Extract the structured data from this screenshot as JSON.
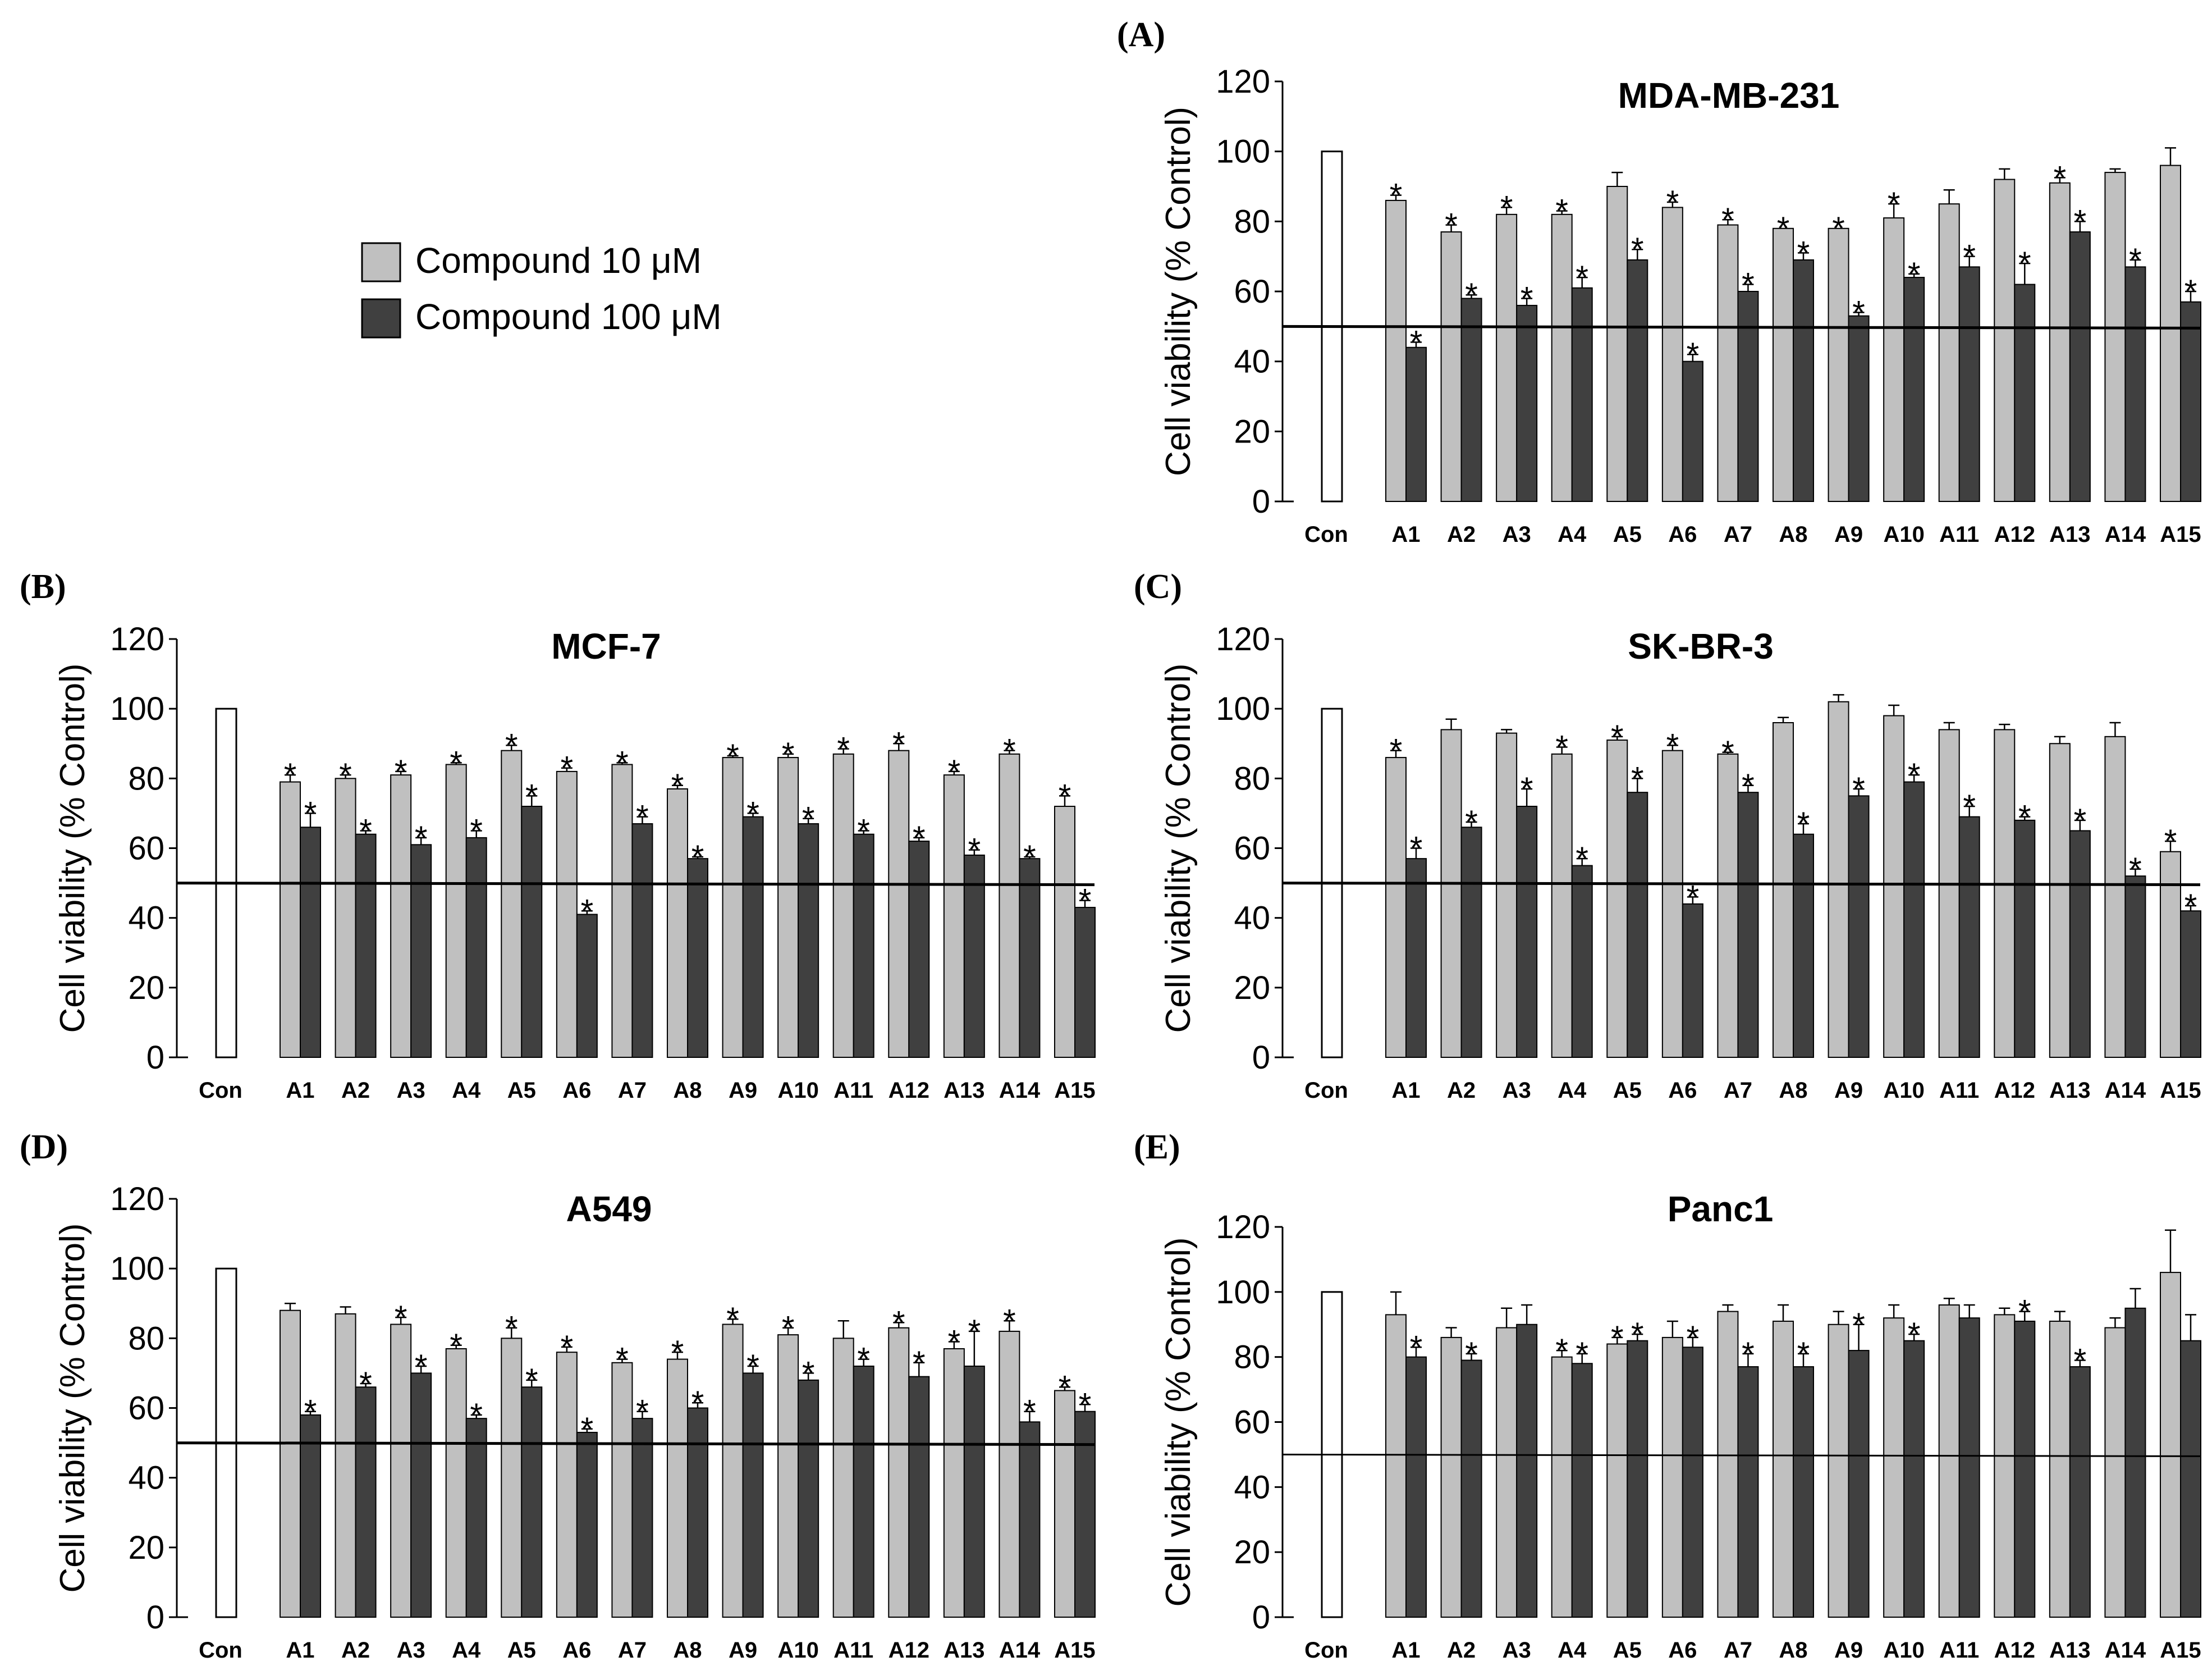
{
  "legend": {
    "items": [
      {
        "label": "Compound  10 μM",
        "color": "#c0c0c0"
      },
      {
        "label": "Compound  100 μM",
        "color": "#404040"
      }
    ]
  },
  "colors": {
    "control": "#ffffff",
    "low": "#c0c0c0",
    "high": "#404040",
    "axis": "#000000"
  },
  "sig_marker": "*",
  "chart_data": [
    {
      "panel": "(A)",
      "type": "bar",
      "title": "MDA-MB-231",
      "ylabel": "Cell viability (% Control)",
      "ylim": [
        0,
        120
      ],
      "yticks": [
        0,
        20,
        40,
        60,
        80,
        100,
        120
      ],
      "reference_line": 50,
      "control": {
        "label": "Con",
        "value": 100
      },
      "categories": [
        "A1",
        "A2",
        "A3",
        "A4",
        "A5",
        "A6",
        "A7",
        "A8",
        "A9",
        "A10",
        "A11",
        "A12",
        "A13",
        "A14",
        "A15"
      ],
      "series": [
        {
          "name": "Compound  10 μM",
          "values": [
            86,
            77,
            82,
            82,
            90,
            84,
            79,
            78,
            78,
            81,
            85,
            92,
            91,
            94,
            96
          ],
          "errors": [
            1.5,
            2,
            2,
            1,
            4,
            1.5,
            1.5,
            0,
            0,
            4,
            4,
            3,
            1.5,
            1,
            5
          ],
          "significant": [
            true,
            true,
            true,
            true,
            false,
            true,
            true,
            true,
            true,
            true,
            false,
            false,
            true,
            false,
            false
          ]
        },
        {
          "name": "Compound  100 μM",
          "values": [
            44,
            58,
            56,
            61,
            69,
            40,
            60,
            69,
            53,
            64,
            67,
            62,
            77,
            67,
            57
          ],
          "errors": [
            1.5,
            1,
            2,
            3,
            3,
            2,
            2,
            2,
            1,
            1,
            3,
            6,
            3,
            2,
            3
          ],
          "significant": [
            true,
            true,
            true,
            true,
            true,
            true,
            true,
            true,
            true,
            true,
            true,
            true,
            true,
            true,
            true
          ]
        }
      ]
    },
    {
      "panel": "(B)",
      "type": "bar",
      "title": "MCF-7",
      "ylabel": "Cell viability (% Control)",
      "ylim": [
        0,
        120
      ],
      "yticks": [
        0,
        20,
        40,
        60,
        80,
        100,
        120
      ],
      "reference_line": 50,
      "control": {
        "label": "Con",
        "value": 100
      },
      "categories": [
        "A1",
        "A2",
        "A3",
        "A4",
        "A5",
        "A6",
        "A7",
        "A8",
        "A9",
        "A10",
        "A11",
        "A12",
        "A13",
        "A14",
        "A15"
      ],
      "series": [
        {
          "name": "Compound  10 μM",
          "values": [
            79,
            80,
            81,
            84,
            88,
            82,
            84,
            77,
            86,
            86,
            87,
            88,
            81,
            87,
            72
          ],
          "errors": [
            2,
            1,
            1,
            0.5,
            1.5,
            1,
            0.5,
            1,
            0.5,
            1,
            1.5,
            2,
            1,
            1,
            3
          ],
          "significant": [
            true,
            true,
            true,
            true,
            true,
            true,
            true,
            true,
            true,
            true,
            true,
            true,
            true,
            true,
            true
          ]
        },
        {
          "name": "Compound  100 μM",
          "values": [
            66,
            64,
            61,
            63,
            72,
            41,
            67,
            57,
            69,
            67,
            64,
            62,
            58,
            57,
            43
          ],
          "errors": [
            4,
            1,
            2,
            2,
            3,
            1,
            2,
            0.5,
            1,
            1.5,
            1,
            1,
            1.5,
            0.5,
            2
          ],
          "significant": [
            true,
            true,
            true,
            true,
            true,
            true,
            true,
            true,
            true,
            true,
            true,
            true,
            true,
            true,
            true
          ]
        }
      ]
    },
    {
      "panel": "(C)",
      "type": "bar",
      "title": "SK-BR-3",
      "ylabel": "Cell viability (% Control)",
      "ylim": [
        0,
        120
      ],
      "yticks": [
        0,
        20,
        40,
        60,
        80,
        100,
        120
      ],
      "reference_line": 50,
      "control": {
        "label": "Con",
        "value": 100
      },
      "categories": [
        "A1",
        "A2",
        "A3",
        "A4",
        "A5",
        "A6",
        "A7",
        "A8",
        "A9",
        "A10",
        "A11",
        "A12",
        "A13",
        "A14",
        "A15"
      ],
      "series": [
        {
          "name": "Compound  10 μM",
          "values": [
            86,
            94,
            93,
            87,
            91,
            88,
            87,
            96,
            102,
            98,
            94,
            94,
            90,
            92,
            59
          ],
          "errors": [
            2,
            3,
            1,
            2,
            1,
            1.5,
            0.5,
            1.5,
            2,
            3,
            2,
            1.5,
            2,
            4,
            3
          ],
          "significant": [
            true,
            false,
            false,
            true,
            true,
            true,
            true,
            false,
            false,
            false,
            false,
            false,
            false,
            false,
            true
          ]
        },
        {
          "name": "Compound  100 μM",
          "values": [
            57,
            66,
            72,
            55,
            76,
            44,
            76,
            64,
            75,
            79,
            69,
            68,
            65,
            52,
            42
          ],
          "errors": [
            3,
            1.5,
            5,
            2,
            4,
            2,
            2,
            3,
            2,
            2,
            3,
            1,
            3,
            2,
            1.5
          ],
          "significant": [
            true,
            true,
            true,
            true,
            true,
            true,
            true,
            true,
            true,
            true,
            true,
            true,
            true,
            true,
            true
          ]
        }
      ]
    },
    {
      "panel": "(D)",
      "type": "bar",
      "title": "A549",
      "ylabel": "Cell viability (% Control)",
      "ylim": [
        0,
        120
      ],
      "yticks": [
        0,
        20,
        40,
        60,
        80,
        100,
        120
      ],
      "reference_line": 50,
      "control": {
        "label": "Con",
        "value": 100
      },
      "categories": [
        "A1",
        "A2",
        "A3",
        "A4",
        "A5",
        "A6",
        "A7",
        "A8",
        "A9",
        "A10",
        "A11",
        "A12",
        "A13",
        "A14",
        "A15"
      ],
      "series": [
        {
          "name": "Compound  10 μM",
          "values": [
            88,
            87,
            84,
            77,
            80,
            76,
            73,
            74,
            84,
            81,
            80,
            83,
            77,
            82,
            65
          ],
          "errors": [
            2,
            2,
            2,
            1,
            3,
            1.5,
            1,
            2,
            1.5,
            2,
            5,
            1.5,
            2,
            3,
            1
          ],
          "significant": [
            false,
            false,
            true,
            true,
            true,
            true,
            true,
            true,
            true,
            true,
            false,
            true,
            true,
            true,
            true
          ]
        },
        {
          "name": "Compound  100 μM",
          "values": [
            58,
            66,
            70,
            57,
            66,
            53,
            57,
            60,
            70,
            68,
            72,
            69,
            72,
            56,
            59
          ],
          "errors": [
            1,
            1,
            2,
            1,
            2,
            1,
            2,
            1.5,
            2,
            2,
            2,
            4,
            10,
            3,
            2
          ],
          "significant": [
            true,
            true,
            true,
            true,
            true,
            true,
            true,
            true,
            true,
            true,
            true,
            true,
            true,
            true,
            true
          ]
        }
      ]
    },
    {
      "panel": "(E)",
      "type": "bar",
      "title": "Panc1",
      "ylabel": "Cell viability (% Control)",
      "ylim": [
        0,
        120
      ],
      "yticks": [
        0,
        20,
        40,
        60,
        80,
        100,
        120
      ],
      "reference_line": 50,
      "control": {
        "label": "Con",
        "value": 100
      },
      "categories": [
        "A1",
        "A2",
        "A3",
        "A4",
        "A5",
        "A6",
        "A7",
        "A8",
        "A9",
        "A10",
        "A11",
        "A12",
        "A13",
        "A14",
        "A15"
      ],
      "series": [
        {
          "name": "Compound  10 μM",
          "values": [
            93,
            86,
            89,
            80,
            84,
            86,
            94,
            91,
            90,
            92,
            96,
            93,
            91,
            89,
            106
          ],
          "errors": [
            7,
            3,
            6,
            2,
            2,
            5,
            2,
            5,
            4,
            4,
            2,
            2,
            3,
            3,
            13
          ],
          "significant": [
            false,
            false,
            false,
            true,
            true,
            false,
            false,
            false,
            false,
            false,
            false,
            false,
            false,
            false,
            false
          ]
        },
        {
          "name": "Compound  100 μM",
          "values": [
            80,
            79,
            90,
            78,
            85,
            83,
            77,
            77,
            82,
            85,
            92,
            91,
            77,
            95,
            85
          ],
          "errors": [
            3,
            2,
            6,
            3,
            2,
            3,
            4,
            4,
            8,
            2,
            4,
            3,
            2,
            6,
            8
          ],
          "significant": [
            true,
            true,
            false,
            true,
            true,
            true,
            true,
            true,
            true,
            true,
            false,
            true,
            true,
            false,
            false
          ]
        }
      ]
    }
  ]
}
